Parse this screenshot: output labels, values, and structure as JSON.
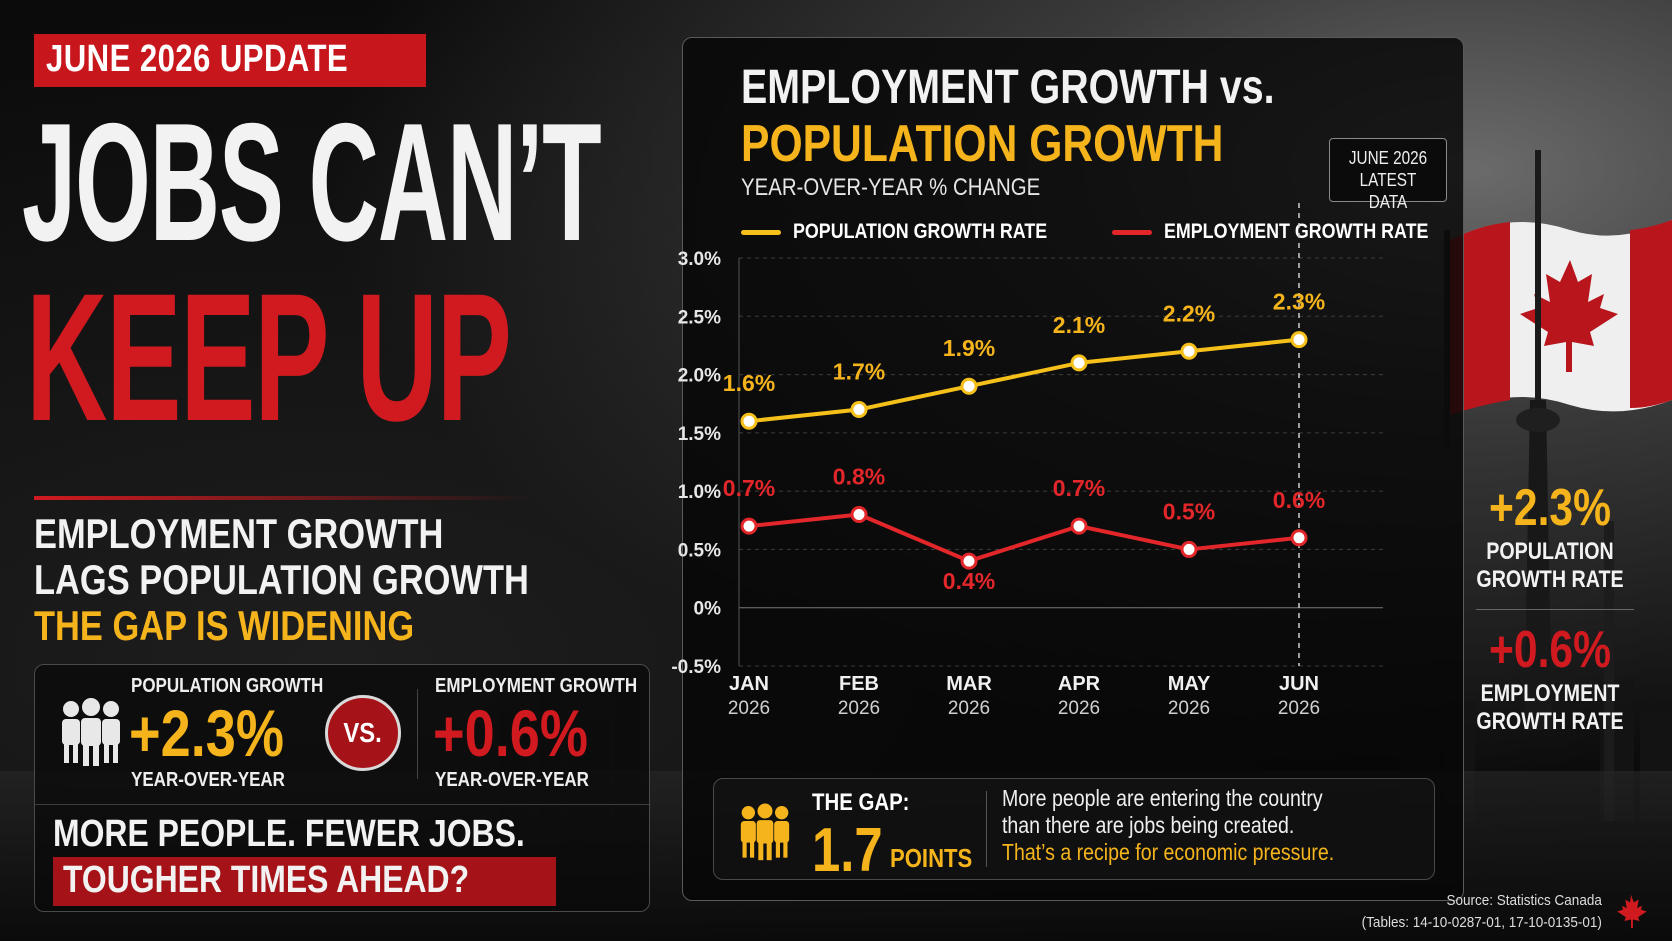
{
  "left": {
    "badge": "JUNE 2026 UPDATE",
    "headline_line1": "JOBS CAN’T",
    "headline_line2": "KEEP UP",
    "sub_line1": "EMPLOYMENT GROWTH",
    "sub_line2": "LAGS POPULATION GROWTH",
    "sub_line3": "THE GAP IS WIDENING",
    "stat_card": {
      "pop_label": "POPULATION GROWTH",
      "pop_value": "+2.3%",
      "pop_period": "YEAR-OVER-YEAR",
      "vs": "VS.",
      "emp_label": "EMPLOYMENT GROWTH",
      "emp_value": "+0.6%",
      "emp_period": "YEAR-OVER-YEAR",
      "tagline1": "MORE PEOPLE. FEWER JOBS.",
      "tagline2": "TOUGHER TIMES AHEAD?"
    }
  },
  "chart_panel": {
    "title_line1": "EMPLOYMENT GROWTH vs.",
    "title_line2": "POPULATION GROWTH",
    "subtitle": "YEAR-OVER-YEAR % CHANGE",
    "callout_line1": "JUNE 2026",
    "callout_line2": "LATEST DATA",
    "legend_pop": "POPULATION GROWTH RATE",
    "legend_emp": "EMPLOYMENT GROWTH RATE",
    "gap": {
      "label": "THE GAP:",
      "value": "1.7",
      "unit": "POINTS",
      "text_line1": "More people are entering the country",
      "text_line2": "than there are jobs being created.",
      "text_line3": "That’s a recipe for economic pressure."
    }
  },
  "right": {
    "pop_value": "+2.3%",
    "pop_label1": "POPULATION",
    "pop_label2": "GROWTH RATE",
    "emp_value": "+0.6%",
    "emp_label1": "EMPLOYMENT",
    "emp_label2": "GROWTH RATE"
  },
  "source_line1": "Source: Statistics Canada",
  "source_line2": "(Tables: 14-10-0287-01, 17-10-0135-01)",
  "colors": {
    "red": "#d11a1f",
    "yellow": "#f5b41c",
    "population_line": "#f5c01a",
    "employment_line": "#e3262a"
  },
  "chart_data": {
    "type": "line",
    "title": "EMPLOYMENT GROWTH vs. POPULATION GROWTH",
    "subtitle": "YEAR-OVER-YEAR % CHANGE",
    "x_month": [
      "JAN",
      "FEB",
      "MAR",
      "APR",
      "MAY",
      "JUN"
    ],
    "x_year": [
      "2026",
      "2026",
      "2026",
      "2026",
      "2026",
      "2026"
    ],
    "ylim": [
      -0.5,
      3.0
    ],
    "y_ticks": [
      -0.5,
      0,
      0.5,
      1.0,
      1.5,
      2.0,
      2.5,
      3.0
    ],
    "y_tick_labels": [
      "-0.5%",
      "0%",
      "0.5%",
      "1.0%",
      "1.5%",
      "2.0%",
      "2.5%",
      "3.0%"
    ],
    "grid": "horizontal dashed",
    "legend": "top",
    "series": [
      {
        "name": "POPULATION GROWTH RATE",
        "values": [
          1.6,
          1.7,
          1.9,
          2.1,
          2.2,
          2.3
        ],
        "labels": [
          "1.6%",
          "1.7%",
          "1.9%",
          "2.1%",
          "2.2%",
          "2.3%"
        ]
      },
      {
        "name": "EMPLOYMENT GROWTH RATE",
        "values": [
          0.7,
          0.8,
          0.4,
          0.7,
          0.5,
          0.6
        ],
        "labels": [
          "0.7%",
          "0.8%",
          "0.4%",
          "0.7%",
          "0.5%",
          "0.6%"
        ]
      }
    ]
  }
}
